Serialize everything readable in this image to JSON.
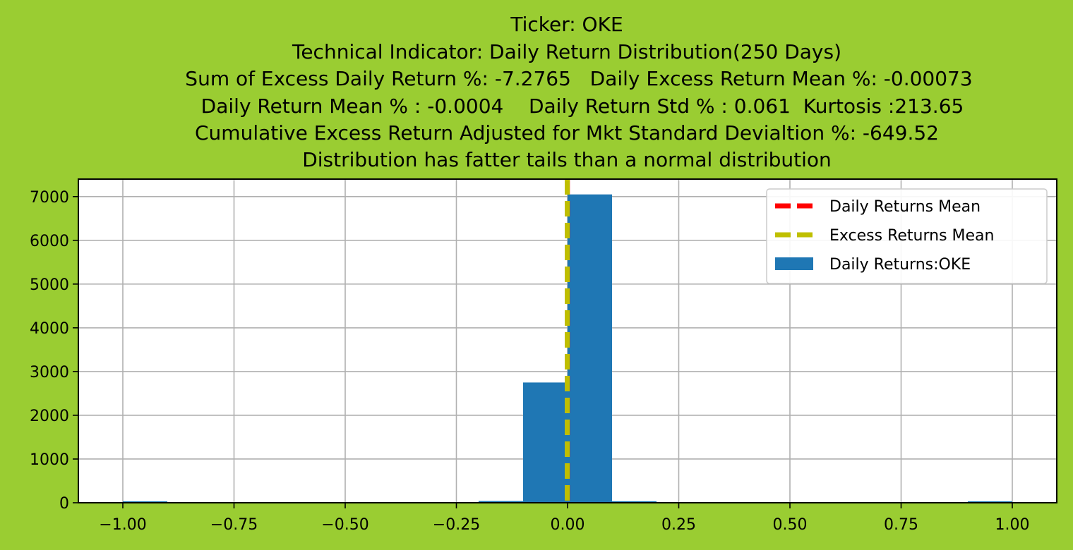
{
  "chart_data": {
    "type": "bar",
    "title_lines": [
      "Ticker: OKE",
      "Technical Indicator: Daily Return Distribution(250 Days)",
      "Sum of Excess Daily Return %: -7.2765   Daily Excess Return Mean %: -0.00073",
      "Daily Return Mean % : -0.0004    Daily Return Std % : 0.061  Kurtosis :213.65",
      "Cumulative Excess Return Adjusted for Mkt Standard Devialtion %: -649.52",
      "Distribution has fatter tails than a normal distribution"
    ],
    "xlim": [
      -1.1,
      1.1
    ],
    "ylim": [
      0,
      7400
    ],
    "xticks": [
      -1.0,
      -0.75,
      -0.5,
      -0.25,
      0.0,
      0.25,
      0.5,
      0.75,
      1.0
    ],
    "xtick_labels": [
      "−1.00",
      "−0.75",
      "−0.50",
      "−0.25",
      "0.00",
      "0.25",
      "0.50",
      "0.75",
      "1.00"
    ],
    "yticks": [
      0,
      1000,
      2000,
      3000,
      4000,
      5000,
      6000,
      7000
    ],
    "ytick_labels": [
      "0",
      "1000",
      "2000",
      "3000",
      "4000",
      "5000",
      "6000",
      "7000"
    ],
    "grid": true,
    "legend_position": "top-right",
    "histogram": {
      "name": "Daily Returns:OKE",
      "color": "#1f77b4",
      "bins": [
        {
          "x0": -1.0,
          "x1": -0.9,
          "count": 20
        },
        {
          "x0": -0.9,
          "x1": -0.8,
          "count": 0
        },
        {
          "x0": -0.8,
          "x1": -0.7,
          "count": 0
        },
        {
          "x0": -0.7,
          "x1": -0.6,
          "count": 0
        },
        {
          "x0": -0.6,
          "x1": -0.5,
          "count": 0
        },
        {
          "x0": -0.5,
          "x1": -0.4,
          "count": 0
        },
        {
          "x0": -0.4,
          "x1": -0.3,
          "count": 0
        },
        {
          "x0": -0.3,
          "x1": -0.2,
          "count": 0
        },
        {
          "x0": -0.2,
          "x1": -0.1,
          "count": 40
        },
        {
          "x0": -0.1,
          "x1": 0.0,
          "count": 2750
        },
        {
          "x0": 0.0,
          "x1": 0.1,
          "count": 7050
        },
        {
          "x0": 0.1,
          "x1": 0.2,
          "count": 35
        },
        {
          "x0": 0.2,
          "x1": 0.3,
          "count": 0
        },
        {
          "x0": 0.3,
          "x1": 0.4,
          "count": 0
        },
        {
          "x0": 0.4,
          "x1": 0.5,
          "count": 0
        },
        {
          "x0": 0.5,
          "x1": 0.6,
          "count": 0
        },
        {
          "x0": 0.6,
          "x1": 0.7,
          "count": 0
        },
        {
          "x0": 0.7,
          "x1": 0.8,
          "count": 0
        },
        {
          "x0": 0.8,
          "x1": 0.9,
          "count": 0
        },
        {
          "x0": 0.9,
          "x1": 1.0,
          "count": 5
        }
      ]
    },
    "vlines": [
      {
        "name": "Daily Returns Mean",
        "x": -0.0004,
        "color": "#ff0000"
      },
      {
        "name": "Excess Returns Mean",
        "x": -0.00073,
        "color": "#bfbf00"
      }
    ],
    "background_color": "#9acd32",
    "plot_background_color": "#ffffff"
  }
}
